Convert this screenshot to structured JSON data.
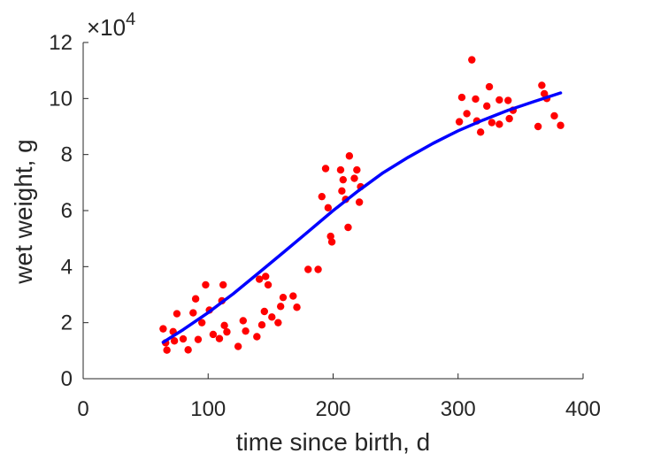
{
  "chart_data": {
    "type": "scatter",
    "xlabel": "time since birth, d",
    "ylabel": "wet weight, g",
    "xlim": [
      0,
      400
    ],
    "ylim": [
      0,
      120000
    ],
    "x_ticks": [
      0,
      100,
      200,
      300,
      400
    ],
    "y_ticks": [
      0,
      20000,
      40000,
      60000,
      80000,
      100000,
      120000
    ],
    "y_tick_labels": [
      "0",
      "2",
      "4",
      "6",
      "8",
      "10",
      "12"
    ],
    "y_exponent_label": {
      "prefix": "×10",
      "power": "4"
    },
    "grid": false,
    "legend": "none",
    "series": [
      {
        "kind": "points",
        "color": "#ff0000",
        "points": [
          [
            64,
            17800
          ],
          [
            66,
            12800
          ],
          [
            67,
            10200
          ],
          [
            72,
            16800
          ],
          [
            73,
            13500
          ],
          [
            75,
            23200
          ],
          [
            80,
            14200
          ],
          [
            84,
            10300
          ],
          [
            88,
            23500
          ],
          [
            90,
            28500
          ],
          [
            92,
            14000
          ],
          [
            95,
            20000
          ],
          [
            98,
            33500
          ],
          [
            101,
            24500
          ],
          [
            104,
            15800
          ],
          [
            109,
            14300
          ],
          [
            111,
            27800
          ],
          [
            112,
            33500
          ],
          [
            113,
            19000
          ],
          [
            115,
            16700
          ],
          [
            124,
            11500
          ],
          [
            128,
            20700
          ],
          [
            130,
            17000
          ],
          [
            139,
            15000
          ],
          [
            141,
            35500
          ],
          [
            143,
            19200
          ],
          [
            145,
            24000
          ],
          [
            146,
            36500
          ],
          [
            148,
            33500
          ],
          [
            151,
            22000
          ],
          [
            156,
            20000
          ],
          [
            158,
            25800
          ],
          [
            160,
            29000
          ],
          [
            168,
            29500
          ],
          [
            171,
            25500
          ],
          [
            180,
            39000
          ],
          [
            188,
            39000
          ],
          [
            191,
            65000
          ],
          [
            194,
            75000
          ],
          [
            196,
            61000
          ],
          [
            198,
            50800
          ],
          [
            199,
            48800
          ],
          [
            206,
            74500
          ],
          [
            207,
            67000
          ],
          [
            208,
            71000
          ],
          [
            210,
            64000
          ],
          [
            212,
            54000
          ],
          [
            213,
            79500
          ],
          [
            217,
            71500
          ],
          [
            219,
            74500
          ],
          [
            221,
            63000
          ],
          [
            222,
            68500
          ],
          [
            301,
            91700
          ],
          [
            303,
            100400
          ],
          [
            307,
            94600
          ],
          [
            311,
            113800
          ],
          [
            314,
            99800
          ],
          [
            315,
            92000
          ],
          [
            318,
            88000
          ],
          [
            323,
            97300
          ],
          [
            325,
            104200
          ],
          [
            327,
            91400
          ],
          [
            333,
            90800
          ],
          [
            333,
            99500
          ],
          [
            340,
            99300
          ],
          [
            341,
            92800
          ],
          [
            344,
            95800
          ],
          [
            364,
            90000
          ],
          [
            367,
            104700
          ],
          [
            369,
            101700
          ],
          [
            371,
            100000
          ],
          [
            377,
            93800
          ],
          [
            382,
            90400
          ]
        ]
      },
      {
        "kind": "line",
        "color": "#0000ff",
        "points": [
          [
            64,
            13000
          ],
          [
            80,
            17500
          ],
          [
            100,
            23600
          ],
          [
            120,
            30300
          ],
          [
            140,
            37600
          ],
          [
            160,
            45000
          ],
          [
            180,
            52500
          ],
          [
            200,
            60000
          ],
          [
            220,
            67000
          ],
          [
            240,
            73500
          ],
          [
            260,
            79000
          ],
          [
            280,
            84000
          ],
          [
            300,
            88500
          ],
          [
            320,
            92300
          ],
          [
            340,
            95800
          ],
          [
            360,
            98800
          ],
          [
            382,
            102000
          ]
        ]
      }
    ]
  }
}
